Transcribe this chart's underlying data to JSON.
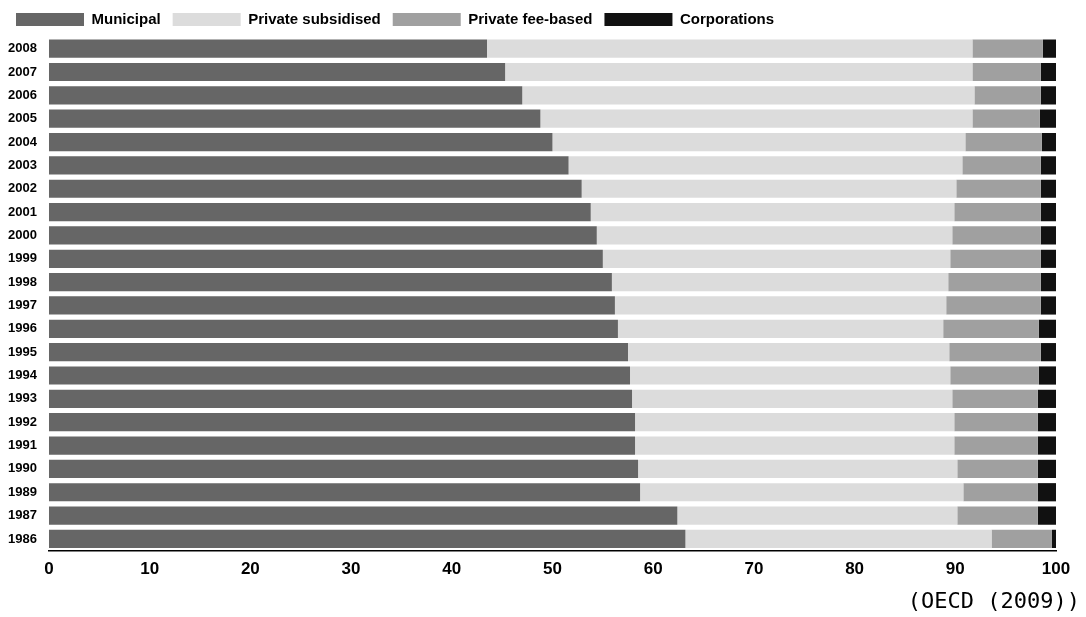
{
  "chart_data": {
    "type": "bar",
    "orientation": "horizontal",
    "stacked": true,
    "categories": [
      "2008",
      "2007",
      "2006",
      "2005",
      "2004",
      "2003",
      "2002",
      "2001",
      "2000",
      "1999",
      "1998",
      "1997",
      "1996",
      "1995",
      "1994",
      "1993",
      "1992",
      "1991",
      "1990",
      "1989",
      "1987",
      "1986"
    ],
    "series": [
      {
        "name": "Municipal",
        "color": "#666666",
        "values": [
          43.5,
          45.3,
          47.0,
          48.8,
          50.0,
          51.6,
          52.9,
          53.8,
          54.4,
          55.0,
          55.9,
          56.2,
          56.5,
          57.5,
          57.7,
          57.9,
          58.2,
          58.2,
          58.5,
          58.7,
          62.4,
          63.2
        ]
      },
      {
        "name": "Private subsidised",
        "color": "#dcdcdc",
        "values": [
          48.2,
          46.4,
          44.9,
          42.9,
          41.0,
          39.1,
          37.2,
          36.1,
          35.3,
          34.5,
          33.4,
          32.9,
          32.3,
          31.9,
          31.8,
          31.8,
          31.7,
          31.7,
          31.7,
          32.1,
          27.8,
          30.4
        ]
      },
      {
        "name": "Private fee-based",
        "color": "#a0a0a0",
        "values": [
          7.0,
          6.8,
          6.6,
          6.7,
          7.6,
          7.8,
          8.4,
          8.6,
          8.8,
          9.0,
          9.2,
          9.4,
          9.5,
          9.1,
          8.8,
          8.5,
          8.3,
          8.3,
          8.0,
          7.4,
          8.0,
          6.0
        ]
      },
      {
        "name": "Corporations",
        "color": "#111111",
        "values": [
          1.3,
          1.5,
          1.5,
          1.6,
          1.4,
          1.5,
          1.5,
          1.5,
          1.5,
          1.5,
          1.5,
          1.5,
          1.7,
          1.5,
          1.7,
          1.8,
          1.8,
          1.8,
          1.8,
          1.8,
          1.8,
          0.4
        ]
      }
    ],
    "xlim": [
      0,
      100
    ],
    "xticks": [
      0,
      10,
      20,
      30,
      40,
      50,
      60,
      70,
      80,
      90,
      100
    ],
    "grid": false,
    "legend": "top",
    "annotations": [
      "(OECD (2009))"
    ]
  }
}
